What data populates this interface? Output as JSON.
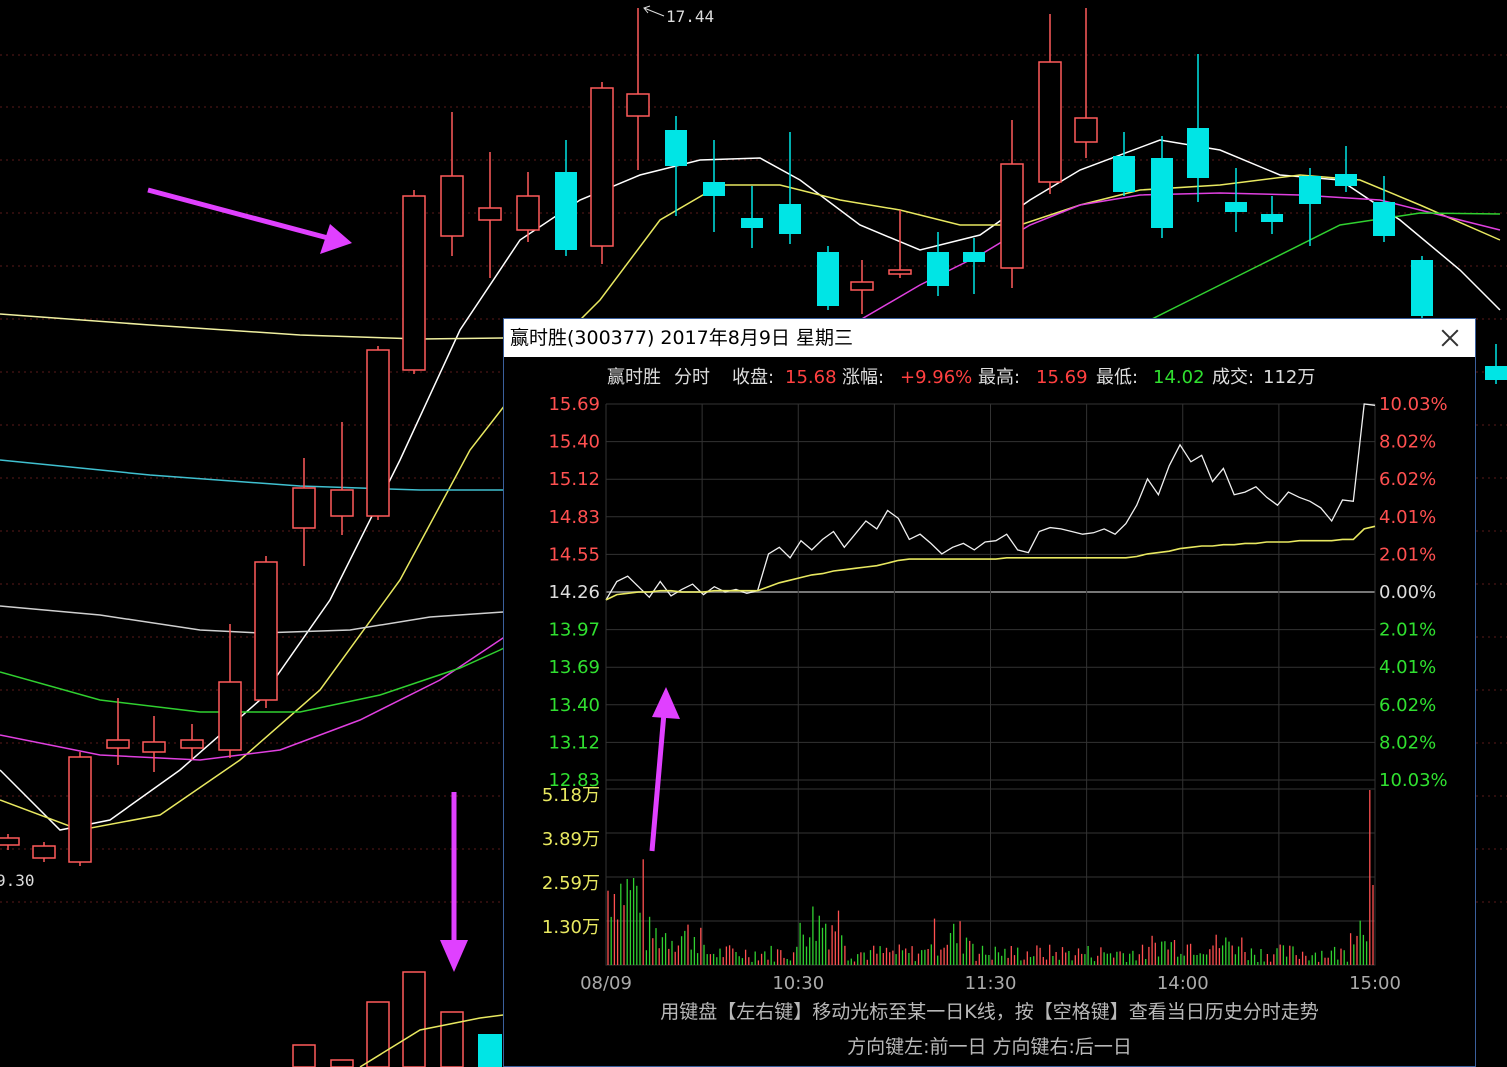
{
  "kline": {
    "labels": {
      "high": "17.44",
      "low": "9.30"
    }
  },
  "popup": {
    "title": "赢时胜(300377) 2017年8月9日 星期三",
    "hint1": "用键盘【左右键】移动光标至某一日K线，按【空格键】查看当日历史分时走势",
    "hint2": "方向键左:前一日    方向键右:后一日"
  },
  "chart_data": {
    "type": "line",
    "title": "",
    "info": {
      "name": "赢时胜",
      "mode": "分时",
      "close_label": "收盘:",
      "close": "15.68",
      "change_label": "涨幅:",
      "change": "+9.96%",
      "high_label": "最高:",
      "high": "15.69",
      "low_label": "最低:",
      "low": "14.02",
      "volume_label": "成交:",
      "volume": "112万"
    },
    "price_ticks": [
      "15.69",
      "15.40",
      "15.12",
      "14.83",
      "14.55",
      "14.26",
      "13.97",
      "13.69",
      "13.40",
      "13.12",
      "12.83"
    ],
    "pct_ticks": [
      "10.03%",
      "8.02%",
      "6.02%",
      "4.01%",
      "2.01%",
      "0.00%",
      "2.01%",
      "4.01%",
      "6.02%",
      "8.02%",
      "10.03%"
    ],
    "volume_ticks": [
      "5.18万",
      "3.89万",
      "2.59万",
      "1.30万"
    ],
    "time_ticks": [
      "08/09",
      "10:30",
      "11:30",
      "14:00",
      "15:00"
    ],
    "ylim": [
      12.83,
      15.69
    ],
    "prev_close": 14.26,
    "series": [
      {
        "values": [
          14.2,
          14.34,
          14.38,
          14.3,
          14.22,
          14.34,
          14.23,
          14.28,
          14.32,
          14.24,
          14.3,
          14.26,
          14.28,
          14.25,
          14.27,
          14.55,
          14.6,
          14.52,
          14.65,
          14.58,
          14.66,
          14.72,
          14.6,
          14.7,
          14.8,
          14.74,
          14.88,
          14.82,
          14.66,
          14.7,
          14.63,
          14.55,
          14.6,
          14.63,
          14.58,
          14.64,
          14.65,
          14.7,
          14.58,
          14.56,
          14.72,
          14.75,
          14.74,
          14.72,
          14.7,
          14.71,
          14.74,
          14.7,
          14.78,
          14.92,
          15.12,
          15.0,
          15.22,
          15.38,
          15.25,
          15.3,
          15.1,
          15.2,
          15.0,
          15.02,
          15.06,
          14.98,
          14.92,
          15.02,
          14.98,
          14.95,
          14.9,
          14.8,
          14.96,
          14.95,
          15.69,
          15.68
        ]
      },
      {
        "values": [
          14.2,
          14.24,
          14.25,
          14.26,
          14.26,
          14.27,
          14.27,
          14.26,
          14.26,
          14.26,
          14.27,
          14.27,
          14.27,
          14.27,
          14.27,
          14.3,
          14.33,
          14.35,
          14.37,
          14.39,
          14.4,
          14.42,
          14.43,
          14.44,
          14.45,
          14.46,
          14.48,
          14.5,
          14.51,
          14.51,
          14.51,
          14.51,
          14.51,
          14.51,
          14.51,
          14.51,
          14.51,
          14.52,
          14.52,
          14.52,
          14.52,
          14.52,
          14.52,
          14.52,
          14.52,
          14.52,
          14.52,
          14.52,
          14.52,
          14.53,
          14.55,
          14.56,
          14.57,
          14.59,
          14.6,
          14.61,
          14.61,
          14.62,
          14.62,
          14.63,
          14.63,
          14.64,
          14.64,
          14.64,
          14.65,
          14.65,
          14.65,
          14.65,
          14.66,
          14.66,
          14.74,
          14.76
        ]
      }
    ]
  }
}
